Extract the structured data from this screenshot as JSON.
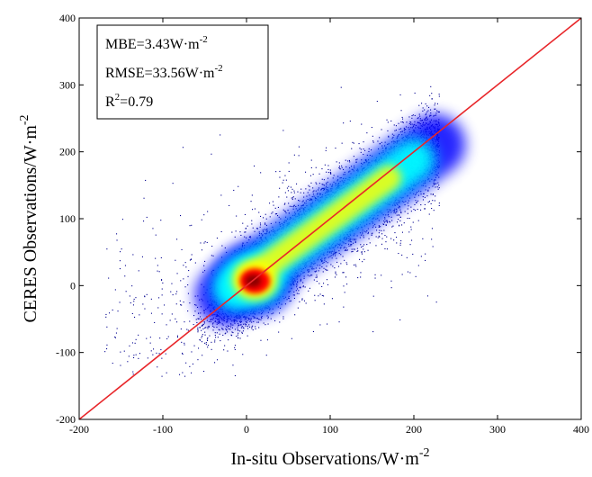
{
  "chart_data": {
    "type": "scatter",
    "style": "density-colored scatter (jet colormap)",
    "title": "",
    "xlabel": {
      "base": "In-situ Observations/W·m",
      "sup": "-2"
    },
    "ylabel": {
      "base": "CERES Observations/W·m",
      "sup": "-2"
    },
    "xlim": [
      -200,
      400
    ],
    "ylim": [
      -200,
      400
    ],
    "x_ticks": [
      -200,
      -100,
      0,
      100,
      200,
      300,
      400
    ],
    "y_ticks": [
      -200,
      -100,
      0,
      100,
      200,
      300,
      400
    ],
    "x_tick_labels": [
      "-200",
      "-100",
      "0",
      "100",
      "200",
      "300",
      "400"
    ],
    "y_tick_labels": [
      "-200",
      "-100",
      "0",
      "100",
      "200",
      "300",
      "400"
    ],
    "grid": false,
    "reference_line": {
      "name": "1:1 line",
      "x": [
        -200,
        400
      ],
      "y": [
        -200,
        400
      ],
      "color": "#e8262a"
    },
    "stats": [
      {
        "prefix": "MBE=3.43W·m",
        "sup": "-2",
        "suffix": ""
      },
      {
        "prefix": "RMSE=33.56W·m",
        "sup": "-2",
        "suffix": ""
      },
      {
        "prefix": "R",
        "sup": "2",
        "suffix": "=0.79"
      }
    ],
    "stats_box_position": "top-left",
    "density_peak": [
      5,
      5
    ],
    "point_cloud_extent": {
      "x": [
        -200,
        260
      ],
      "y": [
        -135,
        300
      ]
    },
    "colormap": [
      "#00008f",
      "#0000ff",
      "#00ffff",
      "#ffff00",
      "#ff0000",
      "#800000"
    ]
  }
}
